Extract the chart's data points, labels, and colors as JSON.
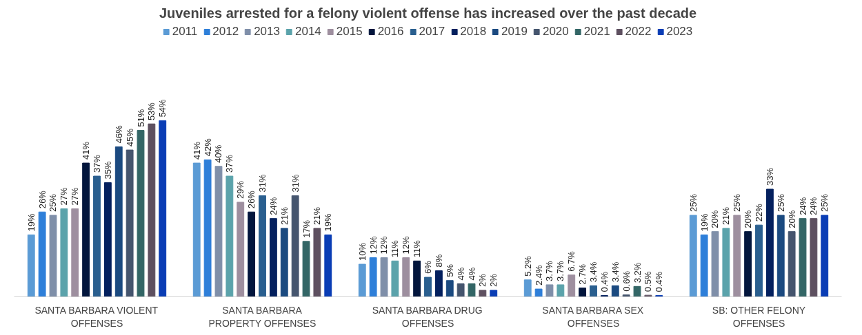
{
  "chart_data": {
    "type": "bar",
    "title": "Juveniles arrested for a felony violent offense has increased over the past decade",
    "categories": [
      "SANTA BARBARA VIOLENT\nOFFENSES",
      "SANTA BARBARA\nPROPERTY OFFENSES",
      "SANTA BARBARA DRUG\nOFFENSES",
      "SANTA BARBARA SEX\nOFFENSES",
      "SB: OTHER FELONY\nOFFENSES"
    ],
    "legend": "top",
    "series": [
      {
        "name": "2011",
        "color": "#5b9bd5",
        "values": [
          19,
          41,
          10,
          5.2,
          25
        ],
        "value_labels": [
          "19%",
          "41%",
          "10%",
          "5.2%",
          "25%"
        ]
      },
      {
        "name": "2012",
        "color": "#2e7fd9",
        "values": [
          26,
          42,
          12,
          2.4,
          19
        ],
        "value_labels": [
          "26%",
          "42%",
          "12%",
          "2.4%",
          "19%"
        ]
      },
      {
        "name": "2013",
        "color": "#7f8fa9",
        "values": [
          25,
          40,
          12,
          3.7,
          20
        ],
        "value_labels": [
          "25%",
          "40%",
          "12%",
          "3.7%",
          "20%"
        ]
      },
      {
        "name": "2014",
        "color": "#5ba3ab",
        "values": [
          27,
          37,
          11,
          3.7,
          21
        ],
        "value_labels": [
          "27%",
          "37%",
          "11%",
          "3.7%",
          "21%"
        ]
      },
      {
        "name": "2015",
        "color": "#9e8f9f",
        "values": [
          27,
          29,
          12,
          6.7,
          25
        ],
        "value_labels": [
          "27%",
          "29%",
          "12%",
          "6.7%",
          "25%"
        ]
      },
      {
        "name": "2016",
        "color": "#03163d",
        "values": [
          41,
          26,
          11,
          2.7,
          20
        ],
        "value_labels": [
          "41%",
          "26%",
          "11%",
          "2.7%",
          "20%"
        ]
      },
      {
        "name": "2017",
        "color": "#2a5f8f",
        "values": [
          37,
          31,
          6,
          3.4,
          22
        ],
        "value_labels": [
          "37%",
          "31%",
          "6%",
          "3.4%",
          "22%"
        ]
      },
      {
        "name": "2018",
        "color": "#04205e",
        "values": [
          35,
          24,
          8,
          0.4,
          33
        ],
        "value_labels": [
          "35%",
          "24%",
          "8%",
          "0.4%",
          "33%"
        ]
      },
      {
        "name": "2019",
        "color": "#1b4a80",
        "values": [
          46,
          21,
          5,
          3.4,
          25
        ],
        "value_labels": [
          "46%",
          "21%",
          "5%",
          "3.4%",
          "25%"
        ]
      },
      {
        "name": "2020",
        "color": "#45556e",
        "values": [
          45,
          31,
          4,
          0.6,
          20
        ],
        "value_labels": [
          "45%",
          "31%",
          "4%",
          "0.6%",
          "20%"
        ]
      },
      {
        "name": "2021",
        "color": "#336666",
        "values": [
          51,
          17,
          4,
          3.2,
          24
        ],
        "value_labels": [
          "51%",
          "17%",
          "4%",
          "3.2%",
          "24%"
        ]
      },
      {
        "name": "2022",
        "color": "#5e5060",
        "values": [
          53,
          21,
          2,
          0.5,
          24
        ],
        "value_labels": [
          "53%",
          "21%",
          "2%",
          "0.5%",
          "24%"
        ]
      },
      {
        "name": "2023",
        "color": "#0a3db5",
        "values": [
          54,
          19,
          2,
          0.4,
          25
        ],
        "value_labels": [
          "54%",
          "19%",
          "2%",
          "0.4%",
          "25%"
        ]
      }
    ]
  }
}
